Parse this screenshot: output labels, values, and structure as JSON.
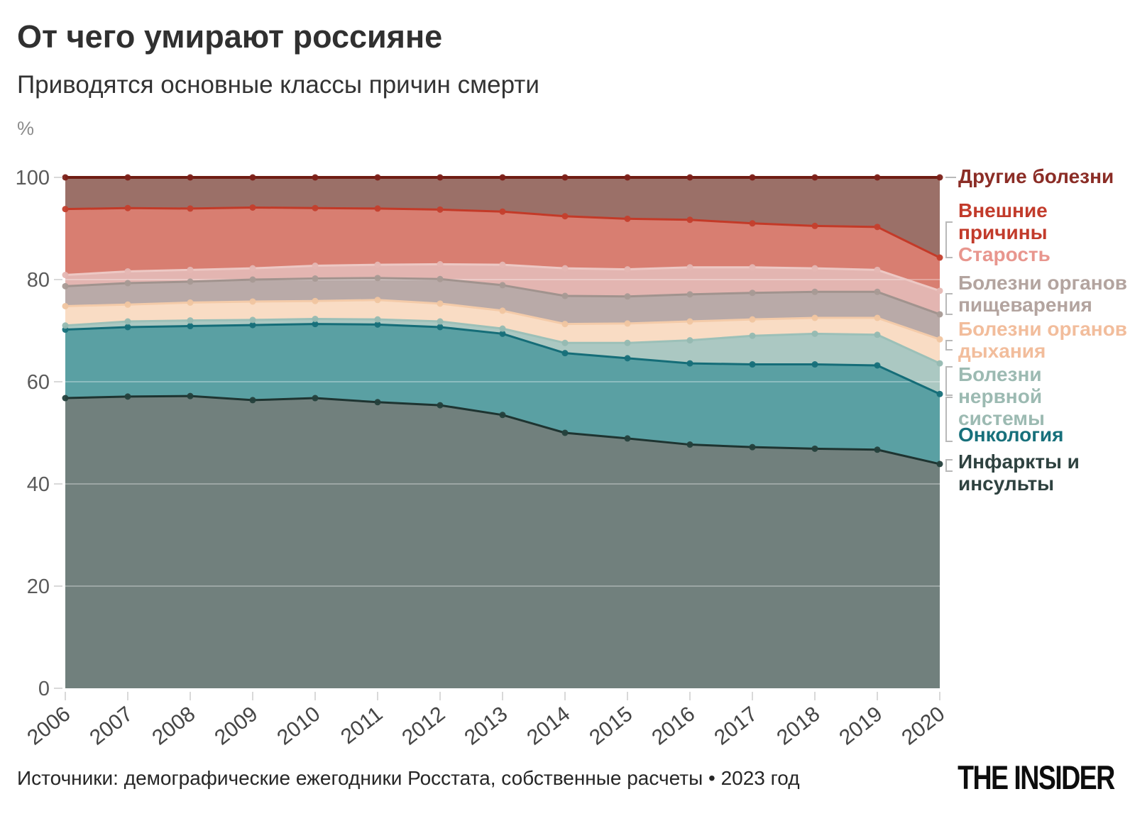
{
  "header": {
    "title": "От чего умирают россияне",
    "subtitle": "Приводятся основные классы причин смерти",
    "unit_label": "%"
  },
  "footer": {
    "source": "Источники: демографические ежегодники Росстата, собственные расчеты • 2023 год",
    "logo": "THE INSIDER"
  },
  "chart_data": {
    "type": "area",
    "stacked": true,
    "percent_stacked": true,
    "title": "От чего умирают россияне",
    "xlabel": "",
    "ylabel": "%",
    "ylim": [
      0,
      100
    ],
    "yticks": [
      0,
      20,
      40,
      60,
      80,
      100
    ],
    "grid": "horizontal-white-overlay",
    "legend_position": "right",
    "x": [
      2006,
      2007,
      2008,
      2009,
      2010,
      2011,
      2012,
      2013,
      2014,
      2015,
      2016,
      2017,
      2018,
      2019,
      2020
    ],
    "top_line_color": "#6f1d13",
    "top_dot_color": "#7c2018",
    "axis_tick_color": "#d9d9d9",
    "y_label_color": "#5a5a5a",
    "x_label_color": "#454545",
    "connector_color": "#b9b9b9",
    "series": [
      {
        "key": "heart-attacks-strokes",
        "name": "Инфаркты и инсульты",
        "label": "Инфаркты и\nинсульты",
        "fill": "#71807d",
        "line": "#1e3431",
        "dot": "#24403c",
        "label_color": "#2f4240",
        "values": [
          56.8,
          57.1,
          57.2,
          56.4,
          56.8,
          56.0,
          55.4,
          53.5,
          50.0,
          48.9,
          47.7,
          47.2,
          46.9,
          46.7,
          43.9
        ]
      },
      {
        "key": "oncology",
        "name": "Онкология",
        "label": "Онкология",
        "fill": "#5aa0a3",
        "line": "#156d78",
        "dot": "#17707a",
        "label_color": "#17707b",
        "values": [
          13.4,
          13.6,
          13.7,
          14.7,
          14.5,
          15.2,
          15.3,
          15.9,
          15.6,
          15.7,
          15.9,
          16.2,
          16.5,
          16.5,
          13.7
        ]
      },
      {
        "key": "nervous-system-diseases",
        "name": "Болезни нервной системы",
        "label": "Болезни\nнервной\nсистемы",
        "fill": "#abc8c2",
        "line": "#9cc0b8",
        "dot": "#95b9b1",
        "label_color": "#9cbab2",
        "values": [
          0.8,
          1.1,
          1.1,
          1.0,
          1.0,
          1.0,
          1.1,
          1.0,
          2.0,
          3.0,
          4.5,
          5.6,
          6.0,
          6.0,
          6.0
        ]
      },
      {
        "key": "respiratory-diseases",
        "name": "Болезни органов дыхания",
        "label": "Болезни органов\nдыхания",
        "fill": "#f9dcc4",
        "line": "#f4cba9",
        "dot": "#f0c5a0",
        "label_color": "#f2bd9c",
        "values": [
          3.8,
          3.3,
          3.5,
          3.6,
          3.5,
          3.8,
          3.5,
          3.5,
          3.7,
          3.8,
          3.7,
          3.2,
          3.1,
          3.3,
          4.7
        ]
      },
      {
        "key": "digestive-diseases",
        "name": "Болезни органов пищеварения",
        "label": "Болезни органов\nпищеварения",
        "fill": "#b9aaa8",
        "line": "#a1938e",
        "dot": "#a89a95",
        "label_color": "#b3a49f",
        "values": [
          3.9,
          4.2,
          4.1,
          4.3,
          4.4,
          4.3,
          4.8,
          5.0,
          5.5,
          5.3,
          5.3,
          5.2,
          5.1,
          5.1,
          4.9
        ]
      },
      {
        "key": "old-age",
        "name": "Старость",
        "label": "Старость",
        "fill": "#e3b5b1",
        "line": "#edc8c4",
        "dot": "#e5b7b3",
        "label_color": "#e8968e",
        "values": [
          2.2,
          2.3,
          2.3,
          2.2,
          2.5,
          2.6,
          2.9,
          4.0,
          5.4,
          5.3,
          5.3,
          5.0,
          4.6,
          4.3,
          4.6
        ]
      },
      {
        "key": "external-causes",
        "name": "Внешние причины",
        "label": "Внешние\nпричины",
        "fill": "#d87e71",
        "line": "#c33a28",
        "dot": "#c43f2d",
        "label_color": "#c23b2b",
        "values": [
          12.9,
          12.4,
          12.0,
          11.9,
          11.3,
          11.0,
          10.7,
          10.4,
          10.2,
          9.9,
          9.3,
          8.6,
          8.3,
          8.4,
          6.5
        ]
      },
      {
        "key": "other-diseases",
        "name": "Другие болезни",
        "label": "Другие болезни",
        "fill": "#9b7068",
        "line": "#6f1d13",
        "dot": "#7c2018",
        "label_color": "#8b2d26",
        "values": [
          6.2,
          6.0,
          6.1,
          5.9,
          6.0,
          6.1,
          6.3,
          6.7,
          7.6,
          8.1,
          8.3,
          9.0,
          9.5,
          9.7,
          15.7
        ]
      }
    ]
  }
}
